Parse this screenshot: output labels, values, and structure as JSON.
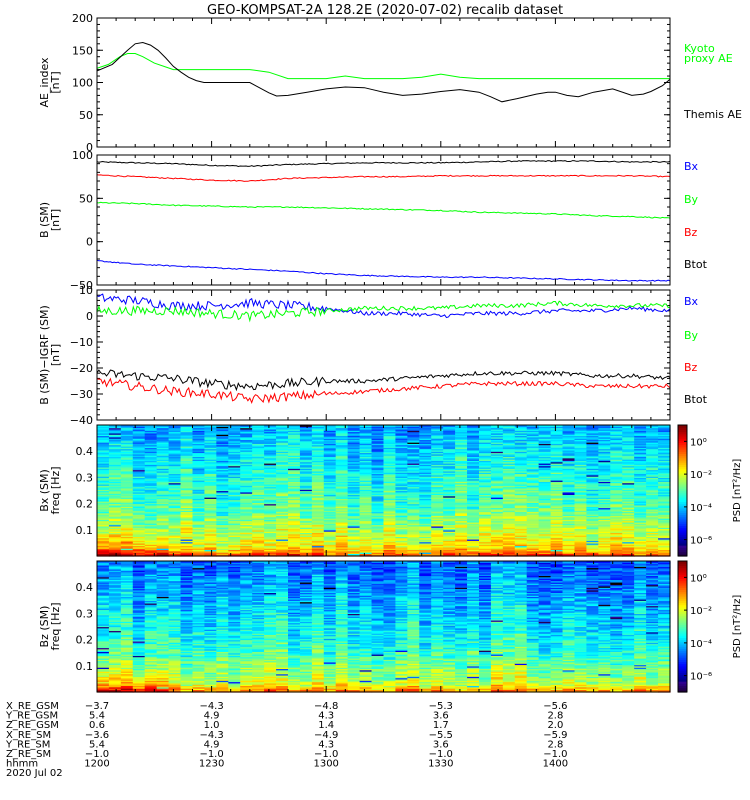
{
  "title": "GEO-KOMPSAT-2A 128.2E (2020-07-02) recalib dataset",
  "colors": {
    "black": "#000000",
    "red": "#ff0000",
    "green": "#00ff00",
    "blue": "#0000ff"
  },
  "chart_data": [
    {
      "type": "line",
      "ylabel_lines": [
        "AE_index",
        "[nT]"
      ],
      "ylim": [
        0,
        200
      ],
      "yticks": [
        0,
        50,
        100,
        150,
        200
      ],
      "x_unit": "hhmm",
      "xlim": [
        "1200",
        "1400"
      ],
      "legend": [
        {
          "label": "Kyoto",
          "color": "#00ff00"
        },
        {
          "label": "proxy AE",
          "color": "#00ff00"
        },
        {
          "label": "Themis AE",
          "color": "#000000"
        }
      ],
      "series": [
        {
          "name": "Kyoto proxy AE",
          "color": "#00ff00",
          "x": [
            0,
            3,
            6,
            8,
            10,
            12,
            15,
            18,
            20,
            22,
            25,
            30,
            35,
            40,
            45,
            50,
            55,
            60,
            65,
            70,
            75,
            80,
            85,
            90,
            95,
            100,
            105,
            110,
            115,
            117,
            120,
            125,
            130,
            135,
            140,
            145,
            150
          ],
          "y": [
            122,
            128,
            140,
            145,
            145,
            140,
            130,
            124,
            120,
            120,
            120,
            120,
            120,
            120,
            116,
            106,
            106,
            106,
            110,
            106,
            106,
            106,
            108,
            113,
            108,
            106,
            106,
            106,
            106,
            106,
            106,
            106,
            106,
            106,
            106,
            106,
            106
          ]
        },
        {
          "name": "Themis AE",
          "color": "#000000",
          "x": [
            0,
            4,
            8,
            10,
            12,
            14,
            16,
            18,
            20,
            22,
            24,
            26,
            28,
            30,
            35,
            40,
            45,
            47,
            50,
            55,
            60,
            65,
            70,
            75,
            80,
            85,
            90,
            95,
            100,
            103,
            106,
            110,
            115,
            118,
            120,
            123,
            126,
            130,
            135,
            140,
            143,
            145,
            148,
            150
          ],
          "y": [
            118,
            128,
            150,
            160,
            162,
            158,
            150,
            138,
            125,
            116,
            108,
            103,
            100,
            100,
            100,
            100,
            84,
            79,
            80,
            85,
            90,
            93,
            92,
            85,
            80,
            82,
            86,
            89,
            85,
            78,
            70,
            75,
            82,
            85,
            85,
            80,
            78,
            85,
            90,
            80,
            82,
            86,
            95,
            105
          ]
        }
      ]
    },
    {
      "type": "line",
      "ylabel_lines": [
        "B (SM)",
        "[nT]"
      ],
      "ylim": [
        -50,
        100
      ],
      "yticks": [
        -50,
        0,
        50,
        100
      ],
      "legend": [
        {
          "label": "Bx",
          "color": "#0000ff"
        },
        {
          "label": "By",
          "color": "#00ff00"
        },
        {
          "label": "Bz",
          "color": "#ff0000"
        },
        {
          "label": "Btot",
          "color": "#000000"
        }
      ],
      "series": [
        {
          "name": "Btot",
          "color": "#000000",
          "x": [
            0,
            10,
            20,
            30,
            40,
            50,
            60,
            70,
            80,
            90,
            100,
            110,
            120,
            130,
            140,
            150
          ],
          "y": [
            92,
            91,
            90,
            88,
            87,
            89,
            90,
            91,
            91,
            91,
            92,
            93,
            93,
            93,
            92,
            92
          ]
        },
        {
          "name": "Bz",
          "color": "#ff0000",
          "x": [
            0,
            10,
            20,
            30,
            40,
            50,
            60,
            70,
            80,
            90,
            100,
            110,
            120,
            130,
            140,
            150
          ],
          "y": [
            77,
            75,
            73,
            71,
            70,
            73,
            74,
            75,
            75,
            76,
            76,
            76,
            76,
            76,
            76,
            75
          ]
        },
        {
          "name": "By",
          "color": "#00ff00",
          "x": [
            0,
            10,
            20,
            30,
            40,
            50,
            60,
            70,
            80,
            90,
            100,
            110,
            120,
            130,
            140,
            150
          ],
          "y": [
            45,
            44,
            42,
            41,
            40,
            40,
            39,
            38,
            37,
            36,
            34,
            33,
            32,
            30,
            29,
            27
          ]
        },
        {
          "name": "Bx",
          "color": "#0000ff",
          "x": [
            0,
            10,
            20,
            30,
            40,
            50,
            60,
            70,
            80,
            90,
            100,
            110,
            120,
            130,
            140,
            150
          ],
          "y": [
            -22,
            -26,
            -28,
            -30,
            -32,
            -34,
            -37,
            -39,
            -40,
            -41,
            -41,
            -42,
            -43,
            -44,
            -45,
            -45
          ]
        }
      ]
    },
    {
      "type": "line",
      "ylabel_lines": [
        "B (SM)−IGRF (SM)",
        "[nT]"
      ],
      "ylim": [
        -40,
        10
      ],
      "yticks": [
        -40,
        -30,
        -20,
        -10,
        0,
        10
      ],
      "legend": [
        {
          "label": "Bx",
          "color": "#0000ff"
        },
        {
          "label": "By",
          "color": "#00ff00"
        },
        {
          "label": "Bz",
          "color": "#ff0000"
        },
        {
          "label": "Btot",
          "color": "#000000"
        }
      ],
      "series": [
        {
          "name": "Bx",
          "color": "#0000ff",
          "x": [
            0,
            10,
            20,
            30,
            40,
            50,
            60,
            70,
            80,
            90,
            100,
            110,
            120,
            130,
            140,
            150
          ],
          "y": [
            7,
            6,
            4,
            4,
            5,
            4,
            3,
            1,
            1,
            0,
            1,
            1,
            2,
            2,
            3,
            2
          ]
        },
        {
          "name": "By",
          "color": "#00ff00",
          "x": [
            0,
            10,
            20,
            30,
            40,
            50,
            60,
            70,
            80,
            90,
            100,
            110,
            120,
            130,
            140,
            150
          ],
          "y": [
            2,
            2,
            2,
            1,
            0,
            1,
            2,
            3,
            3,
            3,
            4,
            4,
            5,
            4,
            4,
            4
          ]
        },
        {
          "name": "Btot",
          "color": "#000000",
          "x": [
            0,
            10,
            20,
            30,
            40,
            50,
            60,
            70,
            80,
            90,
            100,
            110,
            120,
            130,
            140,
            150
          ],
          "y": [
            -22,
            -23,
            -24,
            -26,
            -27,
            -26,
            -25,
            -25,
            -24,
            -23,
            -22,
            -22,
            -22,
            -23,
            -23,
            -24
          ]
        },
        {
          "name": "Bz",
          "color": "#ff0000",
          "x": [
            0,
            10,
            20,
            30,
            40,
            50,
            60,
            70,
            80,
            90,
            100,
            110,
            120,
            130,
            140,
            150
          ],
          "y": [
            -25,
            -27,
            -29,
            -30,
            -32,
            -31,
            -30,
            -29,
            -28,
            -27,
            -26,
            -26,
            -26,
            -27,
            -27,
            -27
          ]
        }
      ]
    },
    {
      "type": "heatmap",
      "ylabel_lines": [
        "Bx (SM)",
        "freq  [Hz]"
      ],
      "ylim": [
        0,
        0.5
      ],
      "yticks": [
        0.1,
        0.2,
        0.3,
        0.4
      ],
      "colorbar_label": "PSD [nT²/Hz]",
      "colorbar_ticks": [
        "10⁰",
        "10⁻²",
        "10⁻⁴",
        "10⁻⁶"
      ],
      "colorbar_range_exp": [
        -7,
        1
      ]
    },
    {
      "type": "heatmap",
      "ylabel_lines": [
        "Bz (SM)",
        "freq  [Hz]"
      ],
      "ylim": [
        0,
        0.5
      ],
      "yticks": [
        0.1,
        0.2,
        0.3,
        0.4
      ],
      "colorbar_label": "PSD [nT²/Hz]",
      "colorbar_ticks": [
        "10⁰",
        "10⁻²",
        "10⁻⁴",
        "10⁻⁶"
      ],
      "colorbar_range_exp": [
        -7,
        1
      ]
    }
  ],
  "ephemeris": {
    "rows": [
      {
        "label": "X_RE_GSM",
        "values": [
          "−3.7",
          "−4.3",
          "−4.8",
          "−5.3",
          "−5.6"
        ]
      },
      {
        "label": "Y_RE_GSM",
        "values": [
          "5.4",
          "4.9",
          "4.3",
          "3.6",
          "2.8"
        ]
      },
      {
        "label": "Z_RE_GSM",
        "values": [
          "0.6",
          "1.0",
          "1.4",
          "1.7",
          "2.0"
        ]
      },
      {
        "label": "X_RE_SM",
        "values": [
          "−3.6",
          "−4.3",
          "−4.9",
          "−5.5",
          "−5.9"
        ]
      },
      {
        "label": "Y_RE_SM",
        "values": [
          "5.4",
          "4.9",
          "4.3",
          "3.6",
          "2.8"
        ]
      },
      {
        "label": "Z_RE_SM",
        "values": [
          "−1.0",
          "−1.0",
          "−1.0",
          "−1.0",
          "−1.0"
        ]
      },
      {
        "label": "hhmm",
        "values": [
          "1200",
          "1230",
          "1300",
          "1330",
          "1400"
        ]
      }
    ],
    "date": "2020 Jul 02"
  }
}
